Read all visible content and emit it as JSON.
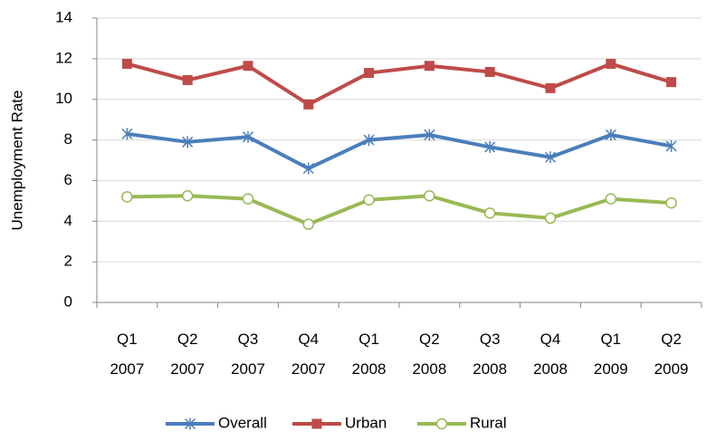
{
  "chart_data": {
    "type": "line",
    "y_label": "Unemployment Rate",
    "categories": [
      "Q1 2007",
      "Q2 2007",
      "Q3 2007",
      "Q4 2007",
      "Q1 2008",
      "Q2 2008",
      "Q3 2008",
      "Q4 2008",
      "Q1 2009",
      "Q2 2009"
    ],
    "series": [
      {
        "name": "Overall",
        "color": "#4a7ebb",
        "marker": "star",
        "values": [
          8.3,
          7.9,
          8.15,
          6.6,
          8.0,
          8.25,
          7.65,
          7.15,
          8.25,
          7.7
        ]
      },
      {
        "name": "Urban",
        "color": "#be4b48",
        "marker": "square",
        "values": [
          11.75,
          10.95,
          11.65,
          9.75,
          11.3,
          11.65,
          11.35,
          10.55,
          11.75,
          10.85
        ]
      },
      {
        "name": "Rural",
        "color": "#98b954",
        "marker": "circle",
        "values": [
          5.2,
          5.25,
          5.1,
          3.85,
          5.05,
          5.25,
          4.4,
          4.15,
          5.1,
          4.9
        ]
      }
    ],
    "ylim": [
      0,
      14
    ],
    "yticks": [
      0,
      2,
      4,
      6,
      8,
      10,
      12,
      14
    ],
    "grid": true,
    "legend": "bottom"
  }
}
